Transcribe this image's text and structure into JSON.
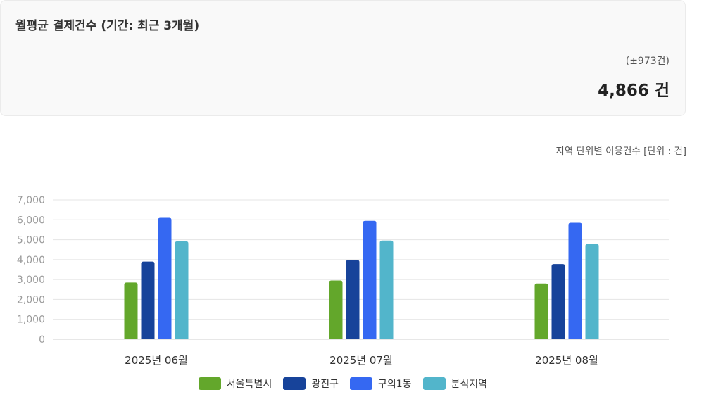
{
  "summary": {
    "title": "월평균 결제건수 (기간: 최근 3개월)",
    "range": "(±973건)",
    "value": "4,866 건"
  },
  "chart_caption": "지역 단위별 이용건수 [단위 : 건]",
  "colors": {
    "서울특별시": "#63a72b",
    "광진구": "#17439a",
    "구의1동": "#3568f2",
    "분석지역": "#52b5cb",
    "grid": "#e4e4e4",
    "axis_text": "#9a9a9a"
  },
  "chart_data": {
    "type": "bar",
    "categories": [
      "2025년 06월",
      "2025년 07월",
      "2025년 08월"
    ],
    "series": [
      {
        "name": "서울특별시",
        "values": [
          2850,
          2950,
          2800
        ]
      },
      {
        "name": "광진구",
        "values": [
          3900,
          3980,
          3780
        ]
      },
      {
        "name": "구의1동",
        "values": [
          6100,
          5950,
          5850
        ]
      },
      {
        "name": "분석지역",
        "values": [
          4920,
          4960,
          4790
        ]
      }
    ],
    "ylim": [
      0,
      7000
    ],
    "yticks": [
      "0",
      "1,000",
      "2,000",
      "3,000",
      "4,000",
      "5,000",
      "6,000",
      "7,000"
    ],
    "grid": true,
    "legend_position": "bottom"
  }
}
